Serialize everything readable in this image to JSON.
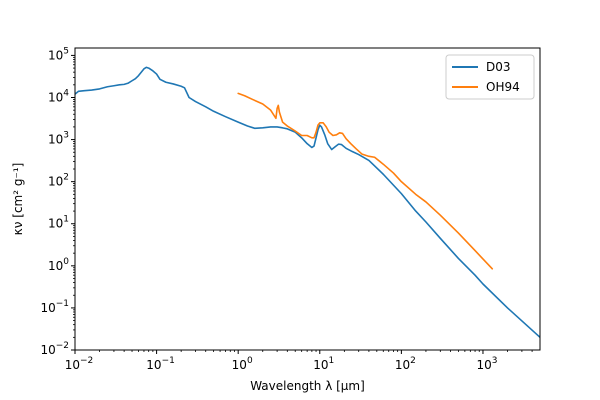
{
  "chart_data": {
    "type": "line",
    "title": "",
    "xlabel": "Wavelength λ [μm]",
    "ylabel": "κν [cm² g⁻¹]",
    "xscale": "log",
    "yscale": "log",
    "xlim": [
      0.01,
      5000
    ],
    "ylim": [
      0.01,
      150000
    ],
    "grid": false,
    "legend_position": "top-right",
    "x_ticks": [
      {
        "value": 0.01,
        "base": "10",
        "exp": "−2"
      },
      {
        "value": 0.1,
        "base": "10",
        "exp": "−1"
      },
      {
        "value": 1,
        "base": "10",
        "exp": "0"
      },
      {
        "value": 10,
        "base": "10",
        "exp": "1"
      },
      {
        "value": 100,
        "base": "10",
        "exp": "2"
      },
      {
        "value": 1000,
        "base": "10",
        "exp": "3"
      }
    ],
    "y_ticks": [
      {
        "value": 0.01,
        "base": "10",
        "exp": "−2"
      },
      {
        "value": 0.1,
        "base": "10",
        "exp": "−1"
      },
      {
        "value": 1,
        "base": "10",
        "exp": "0"
      },
      {
        "value": 10,
        "base": "10",
        "exp": "1"
      },
      {
        "value": 100,
        "base": "10",
        "exp": "2"
      },
      {
        "value": 1000,
        "base": "10",
        "exp": "3"
      },
      {
        "value": 10000,
        "base": "10",
        "exp": "4"
      },
      {
        "value": 100000,
        "base": "10",
        "exp": "5"
      }
    ],
    "series": [
      {
        "name": "D03",
        "color": "#1f77b4",
        "points": [
          [
            0.01,
            12000
          ],
          [
            0.011,
            14000
          ],
          [
            0.013,
            14500
          ],
          [
            0.016,
            15000
          ],
          [
            0.02,
            16000
          ],
          [
            0.025,
            18000
          ],
          [
            0.03,
            19000
          ],
          [
            0.035,
            20000
          ],
          [
            0.04,
            20500
          ],
          [
            0.045,
            22000
          ],
          [
            0.05,
            25000
          ],
          [
            0.055,
            28000
          ],
          [
            0.06,
            33000
          ],
          [
            0.065,
            40000
          ],
          [
            0.07,
            48000
          ],
          [
            0.075,
            52000
          ],
          [
            0.08,
            50000
          ],
          [
            0.09,
            43000
          ],
          [
            0.1,
            36000
          ],
          [
            0.11,
            27000
          ],
          [
            0.13,
            23000
          ],
          [
            0.16,
            21000
          ],
          [
            0.2,
            18500
          ],
          [
            0.22,
            17000
          ],
          [
            0.25,
            10000
          ],
          [
            0.3,
            8000
          ],
          [
            0.4,
            6000
          ],
          [
            0.5,
            4700
          ],
          [
            0.7,
            3500
          ],
          [
            1.0,
            2600
          ],
          [
            1.3,
            2100
          ],
          [
            1.6,
            1850
          ],
          [
            2.0,
            1900
          ],
          [
            2.5,
            2000
          ],
          [
            3.0,
            2000
          ],
          [
            3.5,
            1900
          ],
          [
            4.0,
            1800
          ],
          [
            5.0,
            1500
          ],
          [
            6.0,
            1100
          ],
          [
            7.0,
            800
          ],
          [
            8.0,
            650
          ],
          [
            8.5,
            700
          ],
          [
            9.0,
            1100
          ],
          [
            9.5,
            1700
          ],
          [
            10.0,
            2200
          ],
          [
            10.5,
            2000
          ],
          [
            11.5,
            1300
          ],
          [
            12.5,
            800
          ],
          [
            14.0,
            580
          ],
          [
            15.5,
            680
          ],
          [
            17.0,
            780
          ],
          [
            18.5,
            760
          ],
          [
            21.0,
            620
          ],
          [
            25.0,
            520
          ],
          [
            30.0,
            440
          ],
          [
            40.0,
            320
          ],
          [
            60.0,
            150
          ],
          [
            100.0,
            52
          ],
          [
            150.0,
            20
          ],
          [
            200.0,
            11
          ],
          [
            300.0,
            4.5
          ],
          [
            500.0,
            1.5
          ],
          [
            800.0,
            0.6
          ],
          [
            1000.0,
            0.37
          ],
          [
            2000.0,
            0.1
          ],
          [
            5000.0,
            0.02
          ]
        ]
      },
      {
        "name": "OH94",
        "color": "#ff7f0e",
        "points": [
          [
            1.0,
            12500
          ],
          [
            1.2,
            11000
          ],
          [
            1.5,
            9000
          ],
          [
            2.0,
            7000
          ],
          [
            2.5,
            5000
          ],
          [
            2.9,
            3200
          ],
          [
            3.0,
            5500
          ],
          [
            3.1,
            6500
          ],
          [
            3.2,
            4500
          ],
          [
            3.5,
            2600
          ],
          [
            4.0,
            2100
          ],
          [
            5.0,
            1600
          ],
          [
            6.0,
            1250
          ],
          [
            7.0,
            1250
          ],
          [
            8.0,
            1100
          ],
          [
            8.5,
            1100
          ],
          [
            9.0,
            1500
          ],
          [
            9.5,
            2200
          ],
          [
            10.0,
            2500
          ],
          [
            11.0,
            2500
          ],
          [
            12.0,
            2000
          ],
          [
            13.0,
            1500
          ],
          [
            14.5,
            1250
          ],
          [
            16.0,
            1300
          ],
          [
            17.5,
            1450
          ],
          [
            19.0,
            1400
          ],
          [
            21.0,
            1050
          ],
          [
            24.0,
            800
          ],
          [
            28.0,
            600
          ],
          [
            33.0,
            450
          ],
          [
            40.0,
            400
          ],
          [
            47.0,
            380
          ],
          [
            60.0,
            260
          ],
          [
            80.0,
            160
          ],
          [
            100.0,
            100
          ],
          [
            150.0,
            50
          ],
          [
            200.0,
            33
          ],
          [
            300.0,
            16
          ],
          [
            500.0,
            6
          ],
          [
            800.0,
            2.3
          ],
          [
            1300.0,
            0.85
          ]
        ]
      }
    ]
  }
}
